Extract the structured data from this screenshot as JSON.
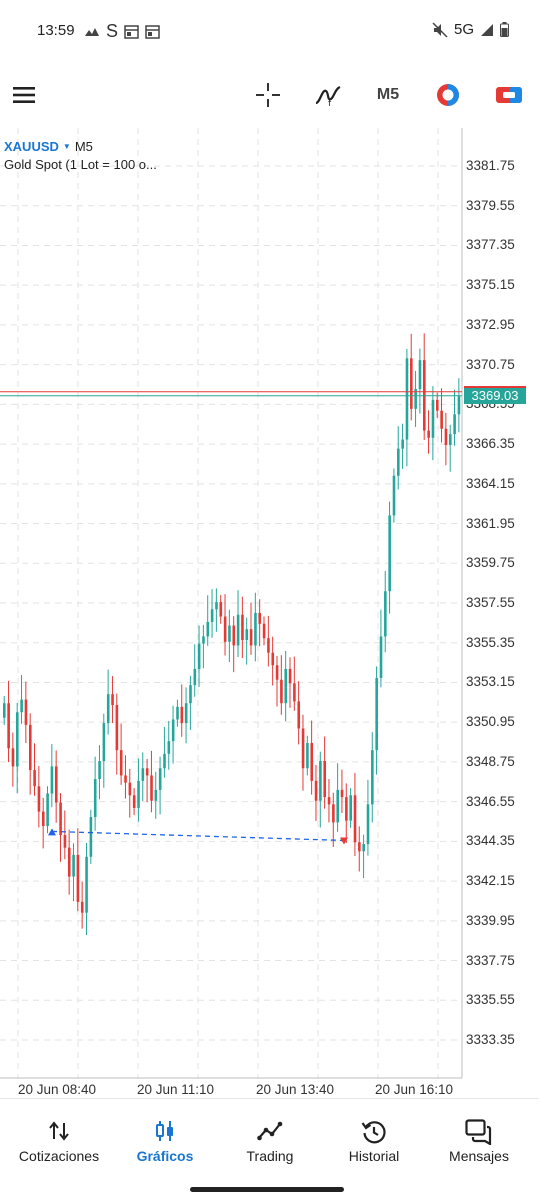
{
  "status_bar": {
    "time": "13:59",
    "left_icons": [
      "signal-icon",
      "s-app-icon",
      "calendar-icon",
      "calendar-icon"
    ],
    "network": "5G",
    "right_icons": [
      "mute-icon",
      "signal-bars-icon",
      "battery-icon"
    ]
  },
  "toolbar": {
    "icons": [
      "menu-icon",
      "crosshair-icon",
      "indicators-icon",
      "timeframe",
      "color-circle-icon",
      "trade-icon"
    ],
    "timeframe_label": "M5"
  },
  "chart": {
    "symbol": "XAUUSD",
    "timeframe": "M5",
    "description": "Gold Spot (1 Lot = 100 o...",
    "current_price": "3369.03",
    "bid_line_color": "#e53935",
    "ask_line_color": "#26a69a",
    "bull_color": "#26a69a",
    "bear_color": "#e53935",
    "price_labels": [
      "3381.75",
      "3379.55",
      "3377.35",
      "3375.15",
      "3372.95",
      "3370.75",
      "3368.55",
      "3366.35",
      "3364.15",
      "3361.95",
      "3359.75",
      "3357.55",
      "3355.35",
      "3353.15",
      "3350.95",
      "3348.75",
      "3346.55",
      "3344.35",
      "3342.15",
      "3339.95",
      "3337.75",
      "3335.55",
      "3333.35"
    ],
    "time_labels": [
      "20 Jun 08:40",
      "20 Jun 11:10",
      "20 Jun 13:40",
      "20 Jun 16:10"
    ],
    "grid": "dashed",
    "trade_line": {
      "open_price": 3344.9,
      "close_price": 3344.4,
      "style": "dashed",
      "color": "#1e63e9"
    }
  },
  "chart_data": {
    "type": "candlestick",
    "x_ticks": [
      "20 Jun 08:40",
      "20 Jun 11:10",
      "20 Jun 13:40",
      "20 Jun 16:10"
    ],
    "y_ticks": [
      3381.75,
      3379.55,
      3377.35,
      3375.15,
      3372.95,
      3370.75,
      3368.55,
      3366.35,
      3364.15,
      3361.95,
      3359.75,
      3357.55,
      3355.35,
      3353.15,
      3350.95,
      3348.75,
      3346.55,
      3344.35,
      3342.15,
      3339.95,
      3337.75,
      3335.55,
      3333.35
    ],
    "ylim": [
      3332.6,
      3383.1
    ],
    "close": [
      3352.0,
      3349.5,
      3348.5,
      3351.5,
      3352.2,
      3350.8,
      3348.3,
      3347.4,
      3346.0,
      3345.2,
      3347.0,
      3348.5,
      3346.5,
      3344.7,
      3344.0,
      3342.4,
      3343.6,
      3341.0,
      3340.4,
      3343.5,
      3345.7,
      3347.8,
      3348.8,
      3350.9,
      3352.5,
      3351.9,
      3349.4,
      3348.0,
      3347.6,
      3346.9,
      3346.2,
      3347.7,
      3348.4,
      3348.0,
      3346.6,
      3347.2,
      3348.4,
      3349.2,
      3349.9,
      3351.1,
      3351.8,
      3350.9,
      3352.0,
      3353.0,
      3353.9,
      3355.3,
      3355.7,
      3356.5,
      3357.2,
      3357.6,
      3356.8,
      3355.4,
      3356.3,
      3355.2,
      3356.9,
      3355.5,
      3356.1,
      3355.2,
      3357.0,
      3356.4,
      3355.6,
      3354.8,
      3354.1,
      3353.3,
      3352.0,
      3353.9,
      3353.1,
      3352.1,
      3350.6,
      3348.4,
      3349.8,
      3347.7,
      3346.6,
      3348.8,
      3346.8,
      3346.4,
      3345.4,
      3347.2,
      3346.8,
      3345.5,
      3346.9,
      3344.3,
      3343.8,
      3344.2,
      3346.4,
      3349.4,
      3353.4,
      3355.7,
      3358.2,
      3362.4,
      3364.6,
      3366.1,
      3366.6,
      3371.1,
      3368.3,
      3369.4,
      3371.0,
      3367.1,
      3366.7,
      3368.8,
      3368.2,
      3367.2,
      3366.3,
      3366.9,
      3368.0,
      3369.0
    ],
    "series": [
      {
        "name": "XAUUSD"
      }
    ]
  },
  "bottom_nav": {
    "items": [
      {
        "label": "Cotizaciones",
        "icon": "sort-arrows-icon",
        "active": false
      },
      {
        "label": "Gráficos",
        "icon": "candles-icon",
        "active": true
      },
      {
        "label": "Trading",
        "icon": "trend-line-icon",
        "active": false
      },
      {
        "label": "Historial",
        "icon": "history-icon",
        "active": false
      },
      {
        "label": "Mensajes",
        "icon": "messages-icon",
        "active": false
      }
    ],
    "active_color": "#1976d2"
  }
}
